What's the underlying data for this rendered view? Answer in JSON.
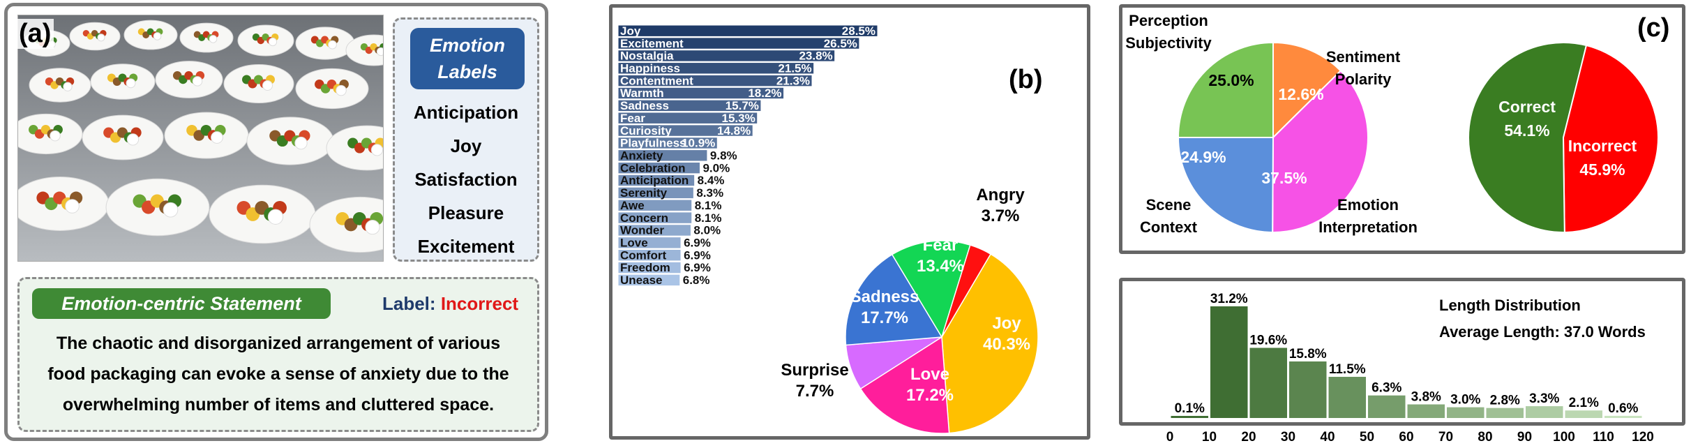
{
  "panel_a": {
    "letter": "(a)",
    "image_name": "plated-salads-photo",
    "emotion_labels": {
      "title_line1": "Emotion",
      "title_line2": "Labels",
      "items": [
        "Anticipation",
        "Joy",
        "Satisfaction",
        "Pleasure",
        "Excitement"
      ]
    },
    "statement": {
      "title": "Emotion-centric Statement",
      "label_key": "Label:",
      "label_value": "Incorrect",
      "lines": [
        "The chaotic and disorganized arrangement of various",
        "food packaging can evoke a sense of anxiety due to the",
        "overwhelming number of items and cluttered space."
      ]
    }
  },
  "panel_b_letter": "(b)",
  "panel_c_letter": "(c)",
  "distribution": {
    "title": "Length Distribution",
    "average": "Average Length: 37.0 Words"
  },
  "colors": {
    "navy": "#1f3b68",
    "light_blue": "#aac4e6",
    "green_dark": "#3f6e33",
    "green_light": "#c9e3bf",
    "red": "#ff0000",
    "green": "#3a7d22"
  },
  "chart_data": [
    {
      "type": "bar",
      "orientation": "horizontal",
      "categories": [
        "Joy",
        "Excitement",
        "Nostalgia",
        "Happiness",
        "Contentment",
        "Warmth",
        "Sadness",
        "Fear",
        "Curiosity",
        "Playfulness",
        "Anxiety",
        "Celebration",
        "Anticipation",
        "Serenity",
        "Awe",
        "Concern",
        "Wonder",
        "Love",
        "Comfort",
        "Freedom",
        "Unease"
      ],
      "values": [
        28.5,
        26.5,
        23.8,
        21.5,
        21.3,
        18.2,
        15.7,
        15.3,
        14.8,
        10.9,
        9.8,
        9.0,
        8.4,
        8.3,
        8.1,
        8.1,
        8.0,
        6.9,
        6.9,
        6.9,
        6.8
      ],
      "labels": [
        "28.5%",
        "26.5%",
        "23.8%",
        "21.5%",
        "21.3%",
        "18.2%",
        "15.7%",
        "15.3%",
        "14.8%",
        "10.9%",
        "9.8%",
        "9.0%",
        "8.4%",
        "8.3%",
        "8.1%",
        "8.1%",
        "8.0%",
        "6.9%",
        "6.9%",
        "6.9%",
        "6.8%"
      ]
    },
    {
      "type": "pie",
      "slices": [
        {
          "name": "Joy",
          "value": 40.3,
          "label": "40.3%",
          "color": "#ffc000"
        },
        {
          "name": "Love",
          "value": 17.2,
          "label": "17.2%",
          "color": "#ff1e9b"
        },
        {
          "name": "Surprise",
          "value": 7.7,
          "label": "7.7%",
          "color": "#d76aff"
        },
        {
          "name": "Sadness",
          "value": 17.7,
          "label": "17.7%",
          "color": "#3a74d2"
        },
        {
          "name": "Fear",
          "value": 13.4,
          "label": "13.4%",
          "color": "#13d654"
        },
        {
          "name": "Angry",
          "value": 3.7,
          "label": "3.7%",
          "color": "#ff1010"
        }
      ]
    },
    {
      "type": "pie",
      "slices": [
        {
          "name": "Sentiment Polarity",
          "value": 12.6,
          "label": "12.6%",
          "color": "#ff8a3d"
        },
        {
          "name": "Emotion Interpretation",
          "value": 37.5,
          "label": "37.5%",
          "color": "#f652e6"
        },
        {
          "name": "Scene Context",
          "value": 24.9,
          "label": "24.9%",
          "color": "#5b8fdb"
        },
        {
          "name": "Perception Subjectivity",
          "value": 25.0,
          "label": "25.0%",
          "color": "#78c454"
        }
      ]
    },
    {
      "type": "pie",
      "slices": [
        {
          "name": "Incorrect",
          "value": 45.9,
          "label": "45.9%",
          "color": "#ff0000"
        },
        {
          "name": "Correct",
          "value": 54.1,
          "label": "54.1%",
          "color": "#3a7d22"
        }
      ]
    },
    {
      "type": "bar",
      "bins": [
        [
          0,
          10
        ],
        [
          10,
          20
        ],
        [
          20,
          30
        ],
        [
          30,
          40
        ],
        [
          40,
          50
        ],
        [
          50,
          60
        ],
        [
          60,
          70
        ],
        [
          70,
          80
        ],
        [
          80,
          90
        ],
        [
          90,
          100
        ],
        [
          100,
          110
        ],
        [
          110,
          120
        ]
      ],
      "values": [
        0.1,
        31.2,
        19.6,
        15.8,
        11.5,
        6.3,
        3.8,
        3.0,
        2.8,
        3.3,
        2.1,
        0.6
      ],
      "labels": [
        "0.1%",
        "31.2%",
        "19.6%",
        "15.8%",
        "11.5%",
        "6.3%",
        "3.8%",
        "3.0%",
        "2.8%",
        "3.3%",
        "2.1%",
        "0.6%"
      ],
      "x_ticks": [
        "0",
        "10",
        "20",
        "30",
        "40",
        "50",
        "60",
        "70",
        "80",
        "90",
        "100",
        "110",
        "120"
      ]
    }
  ]
}
